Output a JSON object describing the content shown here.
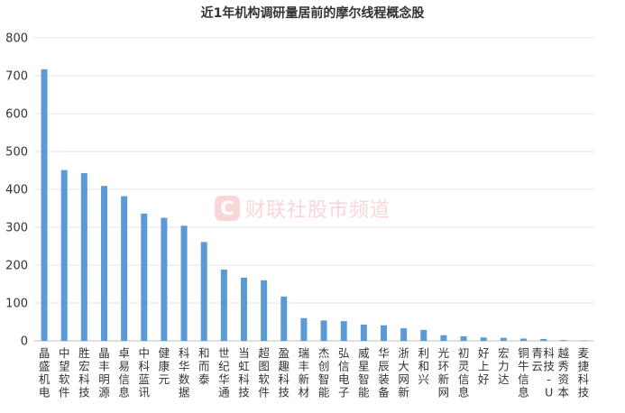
{
  "watermark": {
    "icon": "C",
    "text": "财联社股市频道"
  },
  "chart_data": {
    "type": "bar",
    "title": "近1年机构调研量居前的摩尔线程概念股",
    "xlabel": "",
    "ylabel": "",
    "ylim": [
      0,
      800
    ],
    "yticks": [
      0,
      100,
      200,
      300,
      400,
      500,
      600,
      700,
      800
    ],
    "grid": true,
    "bar_color": "#5b9bd5",
    "categories": [
      "晶盛机电",
      "中望软件",
      "胜宏科技",
      "晶丰明源",
      "卓易信息",
      "中科蓝讯",
      "健康元",
      "科华数据",
      "和而泰",
      "世纪华通",
      "当虹科技",
      "超图软件",
      "盈趣科技",
      "瑞丰新材",
      "杰创智能",
      "弘信电子",
      "威星智能",
      "华辰装备",
      "浙大网新",
      "利和兴",
      "光环新网",
      "初灵信息",
      "好上好",
      "宏力达",
      "铜牛信息",
      "青云科技-U",
      "越秀资本",
      "麦捷科技"
    ],
    "values": [
      717,
      451,
      443,
      409,
      382,
      336,
      325,
      304,
      261,
      188,
      167,
      160,
      117,
      60,
      54,
      52,
      43,
      41,
      33,
      29,
      15,
      12,
      9,
      8,
      6,
      5,
      2,
      1
    ]
  }
}
